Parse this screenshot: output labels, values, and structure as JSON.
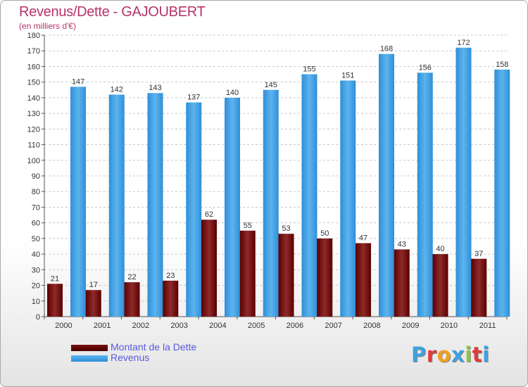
{
  "header": {
    "title": "Revenus/Dette - GAJOUBERT",
    "subtitle": "(en milliers d'€)"
  },
  "chart_data": {
    "type": "bar",
    "title": "Revenus/Dette - GAJOUBERT",
    "ylabel": "(en milliers d'€)",
    "xlabel": "",
    "categories": [
      "2000",
      "2001",
      "2002",
      "2003",
      "2004",
      "2005",
      "2006",
      "2007",
      "2008",
      "2009",
      "2010",
      "2011"
    ],
    "series": [
      {
        "name": "Montant de la Dette",
        "color": "#7a0e0e",
        "values": [
          21,
          17,
          22,
          23,
          62,
          55,
          53,
          50,
          47,
          43,
          40,
          37
        ]
      },
      {
        "name": "Revenus",
        "color": "#3d9ae2",
        "values": [
          147,
          142,
          143,
          137,
          140,
          145,
          155,
          151,
          168,
          156,
          172,
          158
        ]
      }
    ],
    "ylim": [
      0,
      180
    ],
    "ytick_step": 10,
    "grid": true,
    "legend_position": "bottom-left"
  },
  "logo": {
    "text": "Proxiti",
    "colors": [
      "#3fa0e0",
      "#e03a3a",
      "#f0a020",
      "#3fa0e0",
      "#8bc34a",
      "#e03a3a",
      "#3fa0e0"
    ]
  }
}
